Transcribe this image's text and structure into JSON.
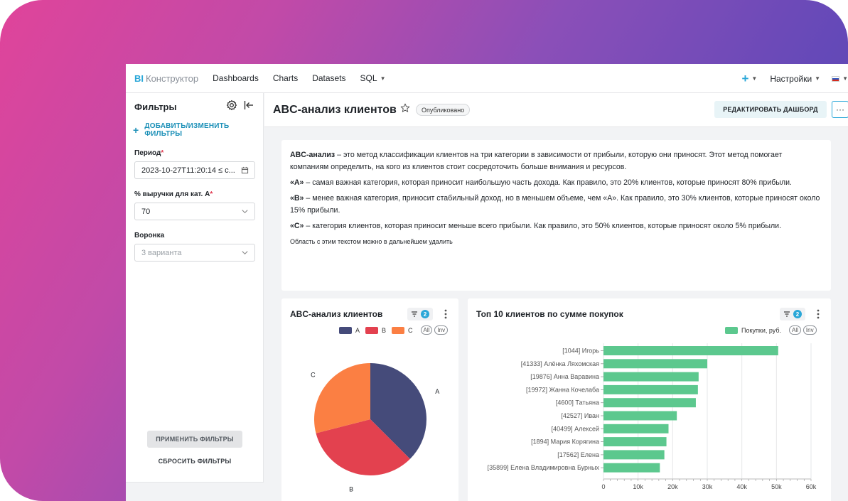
{
  "nav": {
    "logo_bi": "BI",
    "logo_text": "Конструктор",
    "links": [
      "Dashboards",
      "Charts",
      "Datasets",
      "SQL"
    ],
    "settings_label": "Настройки"
  },
  "sidebar": {
    "title": "Фильтры",
    "add_label": "ДОБАВИТЬ/ИЗМЕНИТЬ ФИЛЬТРЫ",
    "period_label": "Период",
    "period_value": "2023-10-27T11:20:14 ≤ c...",
    "pct_label": "% выручки для кат. A",
    "pct_value": "70",
    "funnel_label": "Воронка",
    "funnel_placeholder": "3 варианта",
    "apply_label": "ПРИМЕНИТЬ ФИЛЬТРЫ",
    "reset_label": "СБРОСИТЬ ФИЛЬТРЫ"
  },
  "header": {
    "title": "ABC-анализ клиентов",
    "status": "Опубликовано",
    "edit_label": "РЕДАКТИРОВАТЬ ДАШБОРД",
    "more_label": "···"
  },
  "text_card": {
    "p1_bold": "ABC-анализ",
    "p1": " – это метод классификации клиентов на три категории в зависимости от прибыли, которую они приносят. Этот метод помогает компаниям определить, на кого из клиентов стоит сосредоточить больше внимания и ресурсов.",
    "p2_bold": "«A»",
    "p2": " – самая важная категория, которая приносит наибольшую часть дохода. Как правило, это 20% клиентов, которые приносят 80% прибыли.",
    "p3_bold": "«B»",
    "p3": " – менее важная категория, приносит стабильный доход, но в меньшем объеме, чем «A». Как правило, это 30% клиентов, которые приносят около 15% прибыли.",
    "p4_bold": "«C»",
    "p4": " – категория клиентов, которая приносит меньше всего прибыли. Как правило, это 50% клиентов, которые приносят около 5% прибыли.",
    "note": "Область с этим текстом можно в дальнейшем удалить"
  },
  "pie_card": {
    "title": "ABC-анализ клиентов",
    "filter_count": "2",
    "all_label": "All",
    "inv_label": "Inv"
  },
  "bar_card": {
    "title": "Топ 10 клиентов по сумме покупок",
    "filter_count": "2",
    "all_label": "All",
    "inv_label": "Inv"
  },
  "colors": {
    "accent": "#2aa7d8",
    "A": "#454b7a",
    "B": "#e3414f",
    "C": "#fb7f43",
    "bar": "#5cc88e"
  },
  "chart_data": [
    {
      "type": "pie",
      "title": "ABC-анализ клиентов",
      "categories": [
        "A",
        "B",
        "C"
      ],
      "values": [
        37.5,
        33.5,
        29.0
      ],
      "colors": [
        "#454b7a",
        "#e3414f",
        "#fb7f43"
      ],
      "legend": "top-right"
    },
    {
      "type": "bar",
      "orientation": "horizontal",
      "title": "Топ 10 клиентов по сумме покупок",
      "categories": [
        "[1044] Игорь",
        "[41333] Алёнка Ляхомская",
        "[19876] Анна Варавина",
        "[19972] Жанна Кочелаба",
        "[4600] Татьяна",
        "[42527] Иван",
        "[40499] Алексей",
        "[1894] Мария Корягина",
        "[17562] Елена",
        "[35899] Елена Владимировна Бурных"
      ],
      "series": [
        {
          "name": "Покупки, руб.",
          "values": [
            50500,
            30000,
            27500,
            27300,
            26700,
            21200,
            18800,
            18200,
            17600,
            16300
          ]
        }
      ],
      "xlim": [
        0,
        60000
      ],
      "xticks": [
        "0",
        "10k",
        "20k",
        "30k",
        "40k",
        "50k",
        "60k"
      ],
      "grid": true,
      "legend": "top-right"
    }
  ]
}
